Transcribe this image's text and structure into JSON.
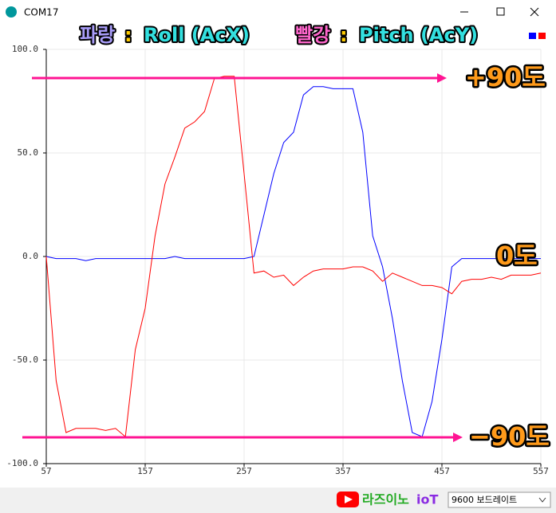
{
  "window": {
    "title": "COM17"
  },
  "chart_data": {
    "type": "line",
    "annotations": {
      "blue_label": "파랑",
      "red_label": "빨강",
      "separator": ":",
      "level_high": "+90도",
      "level_zero": "0도",
      "level_low": "−90도"
    },
    "x": [
      57,
      67,
      77,
      87,
      97,
      107,
      117,
      127,
      137,
      147,
      157,
      167,
      177,
      187,
      197,
      207,
      217,
      227,
      237,
      247,
      257,
      267,
      277,
      287,
      297,
      307,
      317,
      327,
      337,
      347,
      357,
      367,
      377,
      387,
      397,
      407,
      417,
      427,
      437,
      447,
      457,
      467,
      477,
      487,
      497,
      507,
      517,
      527,
      537,
      547,
      557
    ],
    "series": [
      {
        "name": "Roll (AcX)",
        "color": "#0000ff",
        "values": [
          0,
          -1,
          -1,
          -1,
          -2,
          -1,
          -1,
          -1,
          -1,
          -1,
          -1,
          -1,
          -1,
          0,
          -1,
          -1,
          -1,
          -1,
          -1,
          -1,
          -1,
          0,
          20,
          40,
          55,
          60,
          78,
          82,
          82,
          81,
          81,
          81,
          60,
          10,
          -5,
          -30,
          -60,
          -85,
          -87,
          -70,
          -40,
          -5,
          -1,
          -1,
          -1,
          -1,
          -1,
          -1,
          -1,
          -1,
          -1
        ]
      },
      {
        "name": "Pitch (AcY)",
        "color": "#ff0000",
        "values": [
          0,
          -60,
          -85,
          -83,
          -83,
          -83,
          -84,
          -83,
          -87,
          -45,
          -25,
          10,
          35,
          48,
          62,
          65,
          70,
          86,
          87,
          87,
          40,
          -8,
          -7,
          -10,
          -9,
          -14,
          -10,
          -7,
          -6,
          -6,
          -6,
          -5,
          -5,
          -7,
          -12,
          -8,
          -10,
          -12,
          -14,
          -14,
          -15,
          -18,
          -12,
          -11,
          -11,
          -10,
          -11,
          -9,
          -9,
          -9,
          -8
        ]
      }
    ],
    "xlim": [
      57,
      557
    ],
    "xticks": [
      57,
      157,
      257,
      357,
      457,
      557
    ],
    "ylim": [
      -100,
      100
    ],
    "yticks": [
      {
        "value": 100,
        "label": "100.0"
      },
      {
        "value": 50,
        "label": "50.0"
      },
      {
        "value": 0,
        "label": "0.0"
      },
      {
        "value": -50,
        "label": "-50.0"
      },
      {
        "value": -100,
        "label": "-100.0"
      }
    ],
    "grid": true
  },
  "footer": {
    "brand": "라즈이노",
    "brand_suffix": "ioT",
    "baud": "9600 보드레이트"
  }
}
